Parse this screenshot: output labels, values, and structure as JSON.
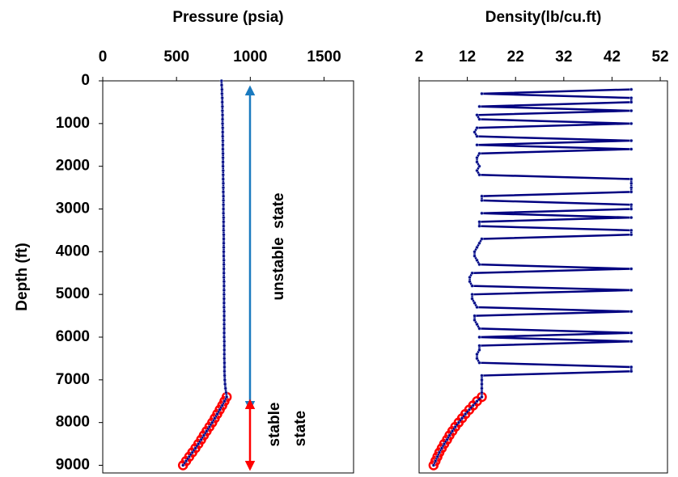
{
  "chart_data": [
    {
      "type": "line",
      "title": "Pressure (psia)",
      "y_label": "Depth (ft)",
      "xlim": [
        0,
        1700
      ],
      "xticks": [
        0,
        500,
        1000,
        1500
      ],
      "ylim": [
        0,
        9180
      ],
      "yticks": [
        0,
        1000,
        2000,
        3000,
        4000,
        5000,
        6000,
        7000,
        8000,
        9000
      ],
      "y_inverted": true,
      "series": [
        {
          "color": "#ff0000",
          "marker": "ring",
          "line": false,
          "depth": [
            7400,
            7500,
            7600,
            7700,
            7800,
            7900,
            8000,
            8100,
            8200,
            8300,
            8400,
            8500,
            8600,
            8700,
            8800,
            8900,
            9000
          ],
          "values": [
            840,
            825,
            810,
            793,
            776,
            759,
            742,
            723,
            704,
            685,
            667,
            648,
            628,
            607,
            586,
            565,
            544
          ]
        },
        {
          "color": "#000080",
          "marker": "dot",
          "line": true,
          "depth": [
            0,
            100,
            200,
            300,
            400,
            500,
            600,
            700,
            800,
            900,
            1000,
            1100,
            1200,
            1300,
            1400,
            1500,
            1600,
            1700,
            1800,
            1900,
            2000,
            2100,
            2200,
            2300,
            2400,
            2500,
            2600,
            2700,
            2800,
            2900,
            3000,
            3100,
            3200,
            3300,
            3400,
            3500,
            3600,
            3700,
            3800,
            3900,
            4000,
            4100,
            4200,
            4300,
            4400,
            4500,
            4600,
            4700,
            4800,
            4900,
            5000,
            5100,
            5200,
            5300,
            5400,
            5500,
            5600,
            5700,
            5800,
            5900,
            6000,
            6100,
            6200,
            6300,
            6400,
            6500,
            6600,
            6700,
            6800,
            6900,
            7000,
            7100,
            7200,
            7300,
            7400,
            7500,
            7600,
            7700,
            7800,
            7900,
            8000,
            8100,
            8200,
            8300,
            8400,
            8500,
            8600,
            8700,
            8800,
            8900,
            9000
          ],
          "values": [
            805,
            806,
            808,
            808,
            810,
            810,
            811,
            811,
            812,
            812,
            812,
            813,
            813,
            813,
            814,
            814,
            814,
            815,
            815,
            815,
            815,
            816,
            816,
            816,
            817,
            817,
            817,
            818,
            818,
            818,
            818,
            818,
            819,
            819,
            819,
            819,
            820,
            820,
            820,
            820,
            820,
            820,
            821,
            821,
            821,
            821,
            821,
            822,
            822,
            822,
            822,
            822,
            822,
            822,
            823,
            823,
            823,
            823,
            823,
            823,
            823,
            824,
            824,
            824,
            824,
            824,
            825,
            825,
            825,
            826,
            827,
            829,
            832,
            836,
            840,
            825,
            810,
            793,
            776,
            759,
            742,
            723,
            704,
            685,
            667,
            648,
            628,
            607,
            586,
            565,
            544
          ]
        }
      ],
      "annotations": [
        {
          "text": "unstable  state",
          "color": "#1a7abf"
        },
        {
          "text": "stable",
          "color": "#ff0000"
        },
        {
          "text": "state",
          "color": "#ff0000"
        }
      ]
    },
    {
      "type": "line",
      "title": "Density(lb/cu.ft)",
      "xlim": [
        2,
        53.5
      ],
      "xticks": [
        2,
        12,
        22,
        32,
        42,
        52
      ],
      "ylim": [
        0,
        9180
      ],
      "y_inverted": true,
      "series": [
        {
          "color": "#ff0000",
          "marker": "ring",
          "line": false,
          "depth": [
            7400,
            7500,
            7600,
            7700,
            7800,
            7900,
            8000,
            8100,
            8200,
            8300,
            8400,
            8500,
            8600,
            8700,
            8800,
            8900,
            9000
          ],
          "values": [
            15,
            14,
            13.2,
            12.4,
            11.6,
            10.9,
            10.2,
            9.5,
            8.9,
            8.3,
            7.8,
            7.2,
            6.7,
            6.2,
            5.8,
            5.4,
            5.0
          ]
        },
        {
          "color": "#000080",
          "marker": "dot",
          "line": true,
          "depth": [
            200,
            300,
            400,
            500,
            600,
            700,
            800,
            900,
            1000,
            1100,
            1200,
            1300,
            1400,
            1500,
            1600,
            1700,
            1800,
            1900,
            2000,
            2100,
            2200,
            2300,
            2400,
            2500,
            2600,
            2700,
            2800,
            2900,
            3000,
            3100,
            3200,
            3300,
            3400,
            3500,
            3600,
            3700,
            3800,
            3900,
            4000,
            4100,
            4200,
            4300,
            4400,
            4500,
            4600,
            4700,
            4800,
            4900,
            5000,
            5100,
            5200,
            5300,
            5400,
            5500,
            5600,
            5700,
            5800,
            5900,
            6000,
            6100,
            6200,
            6300,
            6400,
            6500,
            6600,
            6700,
            6800,
            6900,
            7000,
            7100,
            7200,
            7300,
            7400,
            7500,
            7600,
            7700,
            7800,
            7900,
            8000,
            8100,
            8200,
            8300,
            8400,
            8500,
            8600,
            8700,
            8800,
            8900,
            9000
          ],
          "values": [
            46,
            15,
            46,
            46,
            14.5,
            46,
            14,
            14.5,
            46,
            14,
            13.5,
            14,
            46,
            14,
            46,
            14.5,
            14,
            14,
            14.5,
            14,
            14.5,
            46,
            46,
            46,
            46,
            15,
            15,
            46,
            46,
            15,
            46,
            14.5,
            14.5,
            46,
            46,
            15,
            14.5,
            14,
            13.5,
            13.5,
            14,
            14.5,
            46,
            13,
            12.5,
            12.5,
            13,
            46,
            13,
            13,
            13.5,
            14,
            46,
            13.5,
            13.5,
            14,
            14.5,
            46,
            14.5,
            46,
            14.5,
            14.5,
            14,
            14,
            14.5,
            46,
            46,
            15,
            15,
            15,
            15,
            15,
            15,
            14,
            13.2,
            12.4,
            11.6,
            10.9,
            10.2,
            9.5,
            8.9,
            8.3,
            7.8,
            7.2,
            6.7,
            6.2,
            5.8,
            5.4,
            5.0
          ]
        }
      ]
    }
  ]
}
